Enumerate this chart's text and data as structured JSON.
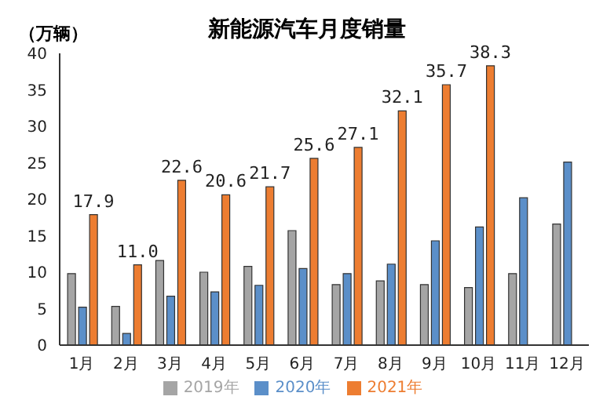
{
  "chart_data": {
    "type": "bar",
    "title": "新能源汽车月度销量",
    "ylabel": "（万辆）",
    "categories": [
      "1月",
      "2月",
      "3月",
      "4月",
      "5月",
      "6月",
      "7月",
      "8月",
      "9月",
      "10月",
      "11月",
      "12月"
    ],
    "series": [
      {
        "name": "2019年",
        "color": "#a5a5a5",
        "values": [
          9.8,
          5.3,
          11.6,
          10.0,
          10.8,
          15.7,
          8.3,
          8.8,
          8.3,
          7.9,
          9.8,
          16.6
        ]
      },
      {
        "name": "2020年",
        "color": "#5b8fc9",
        "values": [
          5.2,
          1.6,
          6.7,
          7.3,
          8.2,
          10.5,
          9.8,
          11.1,
          14.3,
          16.2,
          20.2,
          25.1
        ]
      },
      {
        "name": "2021年",
        "color": "#ed7d31",
        "values": [
          17.9,
          11.0,
          22.6,
          20.6,
          21.7,
          25.6,
          27.1,
          32.1,
          35.7,
          38.3,
          null,
          null
        ],
        "value_labels": [
          "17.9",
          "11.0",
          "22.6",
          "20.6",
          "21.7",
          "25.6",
          "27.1",
          "32.1",
          "35.7",
          "38.3",
          null,
          null
        ]
      }
    ],
    "ylim": [
      0,
      40
    ],
    "yticks": [
      0,
      5,
      10,
      15,
      20,
      25,
      30,
      35,
      40
    ],
    "grid": false,
    "legend": "bottom"
  }
}
